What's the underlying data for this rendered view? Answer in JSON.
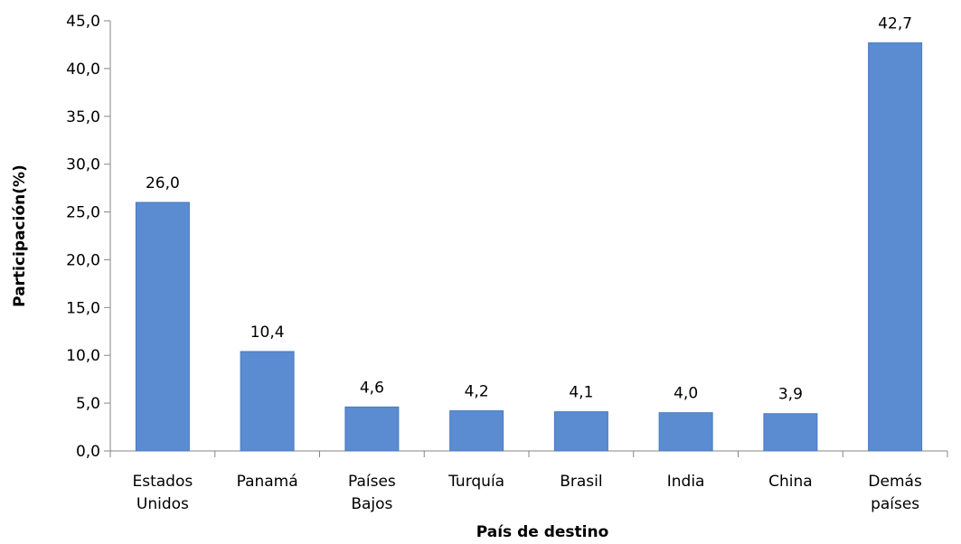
{
  "chart_data": {
    "type": "bar",
    "title": "",
    "xlabel": "País de destino",
    "ylabel": "Participación(%)",
    "ylim": [
      0,
      45
    ],
    "y_ticks": [
      "0,0",
      "5,0",
      "10,0",
      "15,0",
      "20,0",
      "25,0",
      "30,0",
      "35,0",
      "40,0",
      "45,0"
    ],
    "grid": false,
    "bar_color": "#5B8BD0",
    "categories": [
      [
        "Estados",
        "Unidos"
      ],
      [
        "Panamá"
      ],
      [
        "Países",
        "Bajos"
      ],
      [
        "Turquía"
      ],
      [
        "Brasil"
      ],
      [
        "India"
      ],
      [
        "China"
      ],
      [
        "Demás",
        "países"
      ]
    ],
    "values": [
      26.0,
      10.4,
      4.6,
      4.2,
      4.1,
      4.0,
      3.9,
      42.7
    ],
    "value_labels": [
      "26,0",
      "10,4",
      "4,6",
      "4,2",
      "4,1",
      "4,0",
      "3,9",
      "42,7"
    ]
  }
}
